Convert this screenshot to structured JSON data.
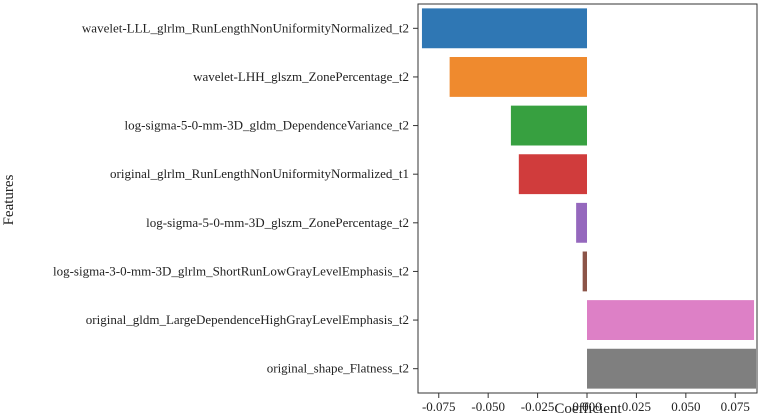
{
  "chart_data": {
    "type": "bar",
    "orientation": "horizontal",
    "categories": [
      "wavelet-LLL_glrlm_RunLengthNonUniformityNormalized_t2",
      "wavelet-LHH_glszm_ZonePercentage_t2",
      "log-sigma-5-0-mm-3D_gldm_DependenceVariance_t2",
      "original_glrlm_RunLengthNonUniformityNormalized_t1",
      "log-sigma-5-0-mm-3D_glszm_ZonePercentage_t2",
      "log-sigma-3-0-mm-3D_glrlm_ShortRunLowGrayLevelEmphasis_t2",
      "original_gldm_LargeDependenceHighGrayLevelEmphasis_t2",
      "original_shape_Flatness_t2"
    ],
    "values": [
      -0.0835,
      -0.0695,
      -0.0385,
      -0.0345,
      -0.0055,
      -0.0022,
      0.0845,
      0.0855
    ],
    "colors": [
      "#2f77b4",
      "#ef8a2e",
      "#37a040",
      "#d03c3c",
      "#9568bd",
      "#8c5448",
      "#dd80c6",
      "#7f7f7f"
    ],
    "xlabel": "Coefficient",
    "ylabel": "Features",
    "xlim": [
      -0.0855,
      0.086
    ],
    "xticks": [
      -0.075,
      -0.05,
      -0.025,
      0.0,
      0.025,
      0.05,
      0.075
    ],
    "xtick_labels": [
      "-0.075",
      "-0.050",
      "-0.025",
      "0.000",
      "0.025",
      "0.050",
      "0.075"
    ],
    "grid": false
  }
}
